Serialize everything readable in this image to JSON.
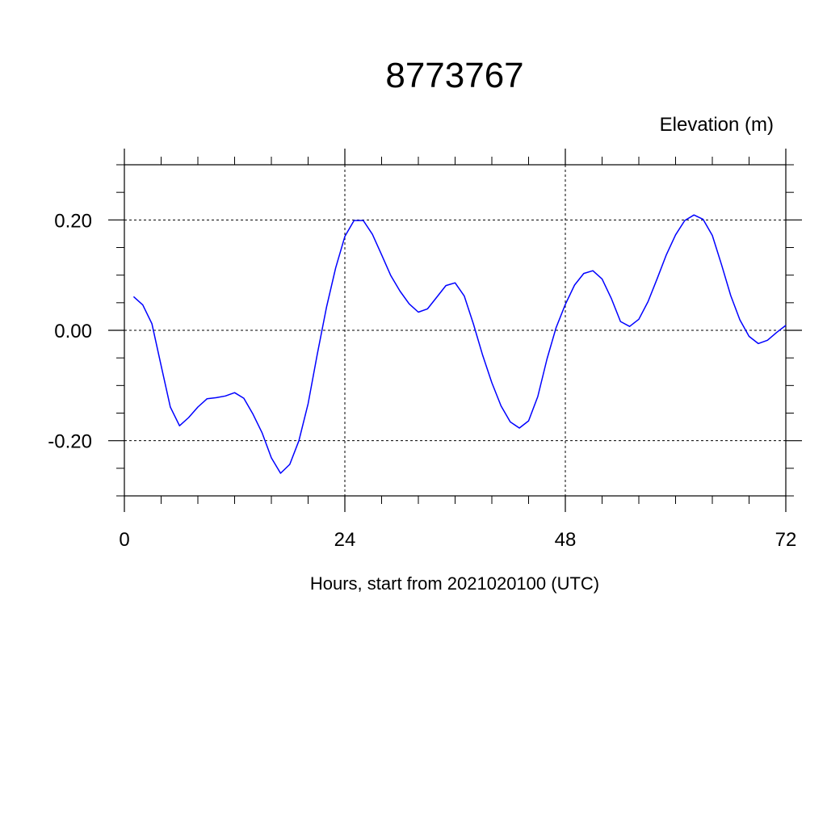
{
  "chart_data": {
    "type": "line",
    "title": "8773767",
    "ylabel": "Elevation (m)",
    "xlabel": "Hours, start from 2021020100 (UTC)",
    "xlim": [
      0,
      72
    ],
    "ylim": [
      -0.3,
      0.3
    ],
    "x_ticks": [
      0,
      24,
      48,
      72
    ],
    "x_tick_labels": [
      "0",
      "24",
      "48",
      "72"
    ],
    "y_ticks": [
      -0.2,
      0.0,
      0.2
    ],
    "y_tick_labels": [
      "-0.20",
      "0.00",
      "0.20"
    ],
    "grid": true,
    "series": [
      {
        "color": "#0000ff",
        "x": [
          1,
          2,
          3,
          4,
          5,
          6,
          7,
          8,
          9,
          10,
          11,
          12,
          13,
          14,
          15,
          16,
          17,
          18,
          19,
          20,
          21,
          22,
          23,
          24,
          25,
          26,
          27,
          28,
          29,
          30,
          31,
          32,
          33,
          34,
          35,
          36,
          37,
          38,
          39,
          40,
          41,
          42,
          43,
          44,
          45,
          46,
          47,
          48,
          49,
          50,
          51,
          52,
          53,
          54,
          55,
          56,
          57,
          58,
          59,
          60,
          61,
          62,
          63,
          64,
          65,
          66,
          67,
          68,
          69,
          70,
          71,
          72
        ],
        "values": [
          0.061,
          0.046,
          0.012,
          -0.064,
          -0.139,
          -0.173,
          -0.158,
          -0.139,
          -0.124,
          -0.122,
          -0.119,
          -0.113,
          -0.123,
          -0.152,
          -0.186,
          -0.231,
          -0.259,
          -0.243,
          -0.2,
          -0.133,
          -0.043,
          0.042,
          0.113,
          0.17,
          0.199,
          0.199,
          0.174,
          0.137,
          0.099,
          0.071,
          0.048,
          0.033,
          0.039,
          0.06,
          0.081,
          0.086,
          0.062,
          0.011,
          -0.045,
          -0.095,
          -0.137,
          -0.166,
          -0.177,
          -0.164,
          -0.12,
          -0.052,
          0.005,
          0.047,
          0.082,
          0.103,
          0.108,
          0.093,
          0.058,
          0.016,
          0.007,
          0.02,
          0.052,
          0.094,
          0.137,
          0.173,
          0.199,
          0.209,
          0.201,
          0.172,
          0.119,
          0.063,
          0.019,
          -0.011,
          -0.024,
          -0.018,
          -0.004,
          0.009
        ]
      }
    ]
  }
}
